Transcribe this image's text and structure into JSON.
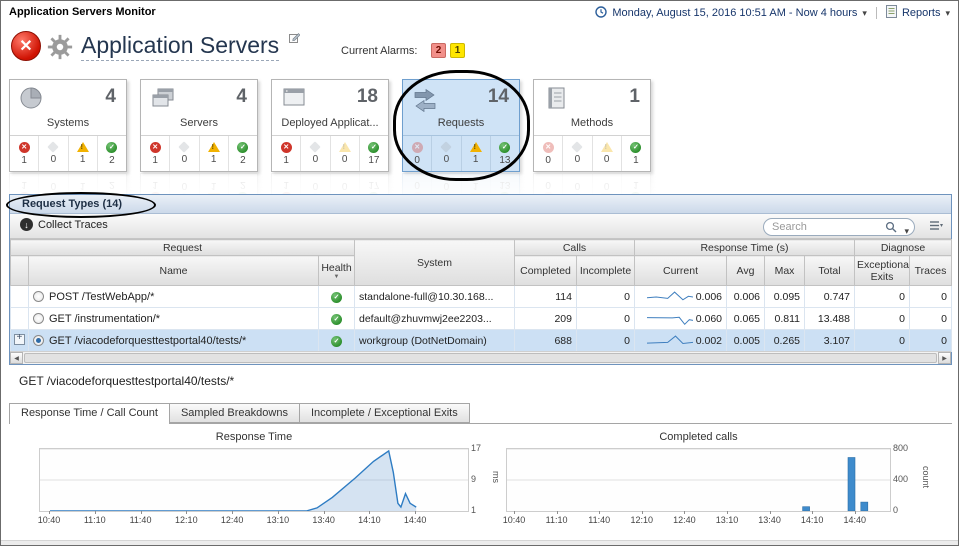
{
  "top_bar": {
    "app_title": "Application Servers Monitor",
    "time_range": "Monday, August 15, 2016 10:51 AM - Now 4 hours",
    "reports_label": "Reports"
  },
  "header": {
    "title": "Application Servers",
    "alarms_label": "Current Alarms:",
    "badges": [
      {
        "severity": "critical",
        "count": "2",
        "bg": "#f2908a"
      },
      {
        "severity": "warning",
        "count": "1",
        "bg": "#ffe600"
      }
    ]
  },
  "tiles": [
    {
      "label": "Systems",
      "count": "4",
      "selected": false,
      "statuses": [
        {
          "severity": "fatal",
          "count": "1"
        },
        {
          "severity": "unknown",
          "count": "0"
        },
        {
          "severity": "warning",
          "count": "1"
        },
        {
          "severity": "normal",
          "count": "2"
        }
      ]
    },
    {
      "label": "Servers",
      "count": "4",
      "selected": false,
      "statuses": [
        {
          "severity": "fatal",
          "count": "1"
        },
        {
          "severity": "unknown",
          "count": "0"
        },
        {
          "severity": "warning",
          "count": "1"
        },
        {
          "severity": "normal",
          "count": "2"
        }
      ]
    },
    {
      "label": "Deployed Applicat...",
      "count": "18",
      "selected": false,
      "statuses": [
        {
          "severity": "fatal",
          "count": "1"
        },
        {
          "severity": "unknown",
          "count": "0"
        },
        {
          "severity": "warning",
          "count": "0"
        },
        {
          "severity": "normal",
          "count": "17"
        }
      ]
    },
    {
      "label": "Requests",
      "count": "14",
      "selected": true,
      "statuses": [
        {
          "severity": "fatal",
          "count": "0"
        },
        {
          "severity": "unknown",
          "count": "0"
        },
        {
          "severity": "warning",
          "count": "1"
        },
        {
          "severity": "normal",
          "count": "13"
        }
      ]
    },
    {
      "label": "Methods",
      "count": "1",
      "selected": false,
      "statuses": [
        {
          "severity": "fatal",
          "count": "0"
        },
        {
          "severity": "unknown",
          "count": "0"
        },
        {
          "severity": "warning",
          "count": "0"
        },
        {
          "severity": "normal",
          "count": "1"
        }
      ]
    }
  ],
  "request_panel": {
    "title": "Request Types (14)",
    "toolbar": {
      "collect_traces": "Collect Traces",
      "search_placeholder": "Search"
    },
    "group_headers": {
      "request": "Request",
      "calls": "Calls",
      "response_time": "Response Time (s)",
      "diagnose": "Diagnose"
    },
    "columns": {
      "name": "Name",
      "health": "Health",
      "system": "System",
      "completed": "Completed",
      "incomplete": "Incomplete",
      "current": "Current",
      "avg": "Avg",
      "max": "Max",
      "total": "Total",
      "exceptional_exits": "Exceptional Exits",
      "traces": "Traces"
    },
    "rows": [
      {
        "name": "POST /TestWebApp/*",
        "health": "normal",
        "system": "standalone-full@10.30.168...",
        "completed": "114",
        "incomplete": "0",
        "current": "0.006",
        "avg": "0.006",
        "max": "0.095",
        "total": "0.747",
        "exceptional_exits": "0",
        "traces": "0",
        "selected": false,
        "expandable": false,
        "spark": [
          [
            0,
            0.55
          ],
          [
            0.2,
            0.5
          ],
          [
            0.45,
            0.6
          ],
          [
            0.6,
            0.15
          ],
          [
            0.78,
            0.7
          ],
          [
            0.9,
            0.45
          ],
          [
            1,
            0.5
          ]
        ]
      },
      {
        "name": "GET /instrumentation/*",
        "health": "normal",
        "system": "default@zhuvmwj2ee2203...",
        "completed": "209",
        "incomplete": "0",
        "current": "0.060",
        "avg": "0.065",
        "max": "0.811",
        "total": "13.488",
        "exceptional_exits": "0",
        "traces": "0",
        "selected": false,
        "expandable": false,
        "spark": [
          [
            0,
            0.4
          ],
          [
            0.55,
            0.42
          ],
          [
            0.7,
            0.38
          ],
          [
            0.82,
            0.88
          ],
          [
            0.92,
            0.55
          ],
          [
            1,
            0.6
          ]
        ]
      },
      {
        "name": "GET /viacodeforquesttestportal40/tests/*",
        "health": "normal",
        "system": "workgroup (DotNetDomain)",
        "completed": "688",
        "incomplete": "0",
        "current": "0.002",
        "avg": "0.005",
        "max": "0.265",
        "total": "3.107",
        "exceptional_exits": "0",
        "traces": "0",
        "selected": true,
        "expandable": true,
        "spark": [
          [
            0,
            0.65
          ],
          [
            0.45,
            0.6
          ],
          [
            0.62,
            0.15
          ],
          [
            0.78,
            0.68
          ],
          [
            1,
            0.6
          ]
        ]
      }
    ]
  },
  "detail": {
    "title": "GET /viacodeforquesttestportal40/tests/*",
    "tabs": [
      "Response Time / Call Count",
      "Sampled Breakdowns",
      "Incomplete / Exceptional Exits"
    ],
    "active_tab": 0
  },
  "chart_data": [
    {
      "type": "line",
      "title": "Response Time",
      "ylabel": "ms",
      "ylim": [
        1,
        17
      ],
      "y_ticks": [
        1,
        9,
        17
      ],
      "x_ticks": [
        "10:40",
        "11:10",
        "11:40",
        "12:10",
        "12:40",
        "13:10",
        "13:40",
        "14:10",
        "14:40"
      ],
      "x_range_minutes": [
        0,
        272
      ],
      "points": [
        [
          0,
          1
        ],
        [
          30,
          1
        ],
        [
          60,
          1
        ],
        [
          90,
          1
        ],
        [
          120,
          1
        ],
        [
          150,
          1
        ],
        [
          168,
          1
        ],
        [
          175,
          1.8
        ],
        [
          185,
          4.5
        ],
        [
          200,
          9.5
        ],
        [
          212,
          13.8
        ],
        [
          222,
          16.5
        ],
        [
          225,
          11
        ],
        [
          228,
          3
        ],
        [
          230,
          2
        ],
        [
          233,
          5.5
        ],
        [
          236,
          3
        ],
        [
          240,
          2
        ]
      ]
    },
    {
      "type": "bar",
      "title": "Completed calls",
      "ylabel": "count",
      "ylim": [
        0,
        800
      ],
      "y_ticks": [
        0,
        400,
        800
      ],
      "x_ticks": [
        "10:40",
        "11:10",
        "11:40",
        "12:10",
        "12:40",
        "13:10",
        "13:40",
        "14:10",
        "14:40"
      ],
      "x_range_minutes": [
        0,
        262
      ],
      "bars": [
        {
          "min": 205,
          "value": 55
        },
        {
          "min": 237,
          "value": 690
        },
        {
          "min": 246,
          "value": 115
        }
      ]
    }
  ]
}
